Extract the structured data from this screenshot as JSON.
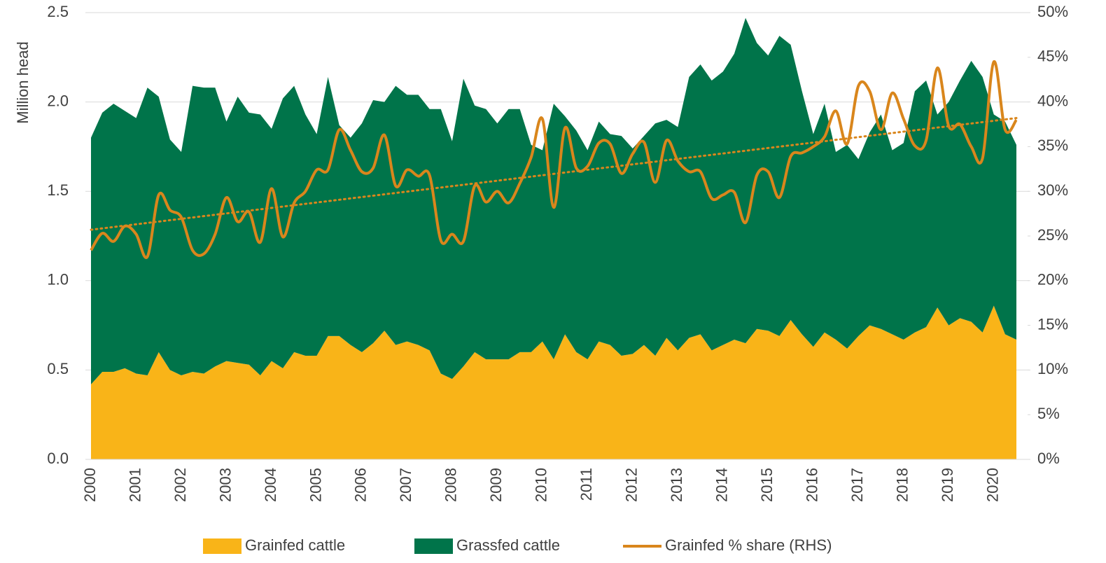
{
  "chart_data": {
    "type": "stacked_area_line",
    "y_axis_label": "Million head",
    "categories": [
      "2000",
      null,
      null,
      null,
      "2001",
      null,
      null,
      null,
      "2002",
      null,
      null,
      null,
      "2003",
      null,
      null,
      null,
      "2004",
      null,
      null,
      null,
      "2005",
      null,
      null,
      null,
      "2006",
      null,
      null,
      null,
      "2007",
      null,
      null,
      null,
      "2008",
      null,
      null,
      null,
      "2009",
      null,
      null,
      null,
      "2010",
      null,
      null,
      null,
      "2011",
      null,
      null,
      null,
      "2012",
      null,
      null,
      null,
      "2013",
      null,
      null,
      null,
      "2014",
      null,
      null,
      null,
      "2015",
      null,
      null,
      null,
      "2016",
      null,
      null,
      null,
      "2017",
      null,
      null,
      null,
      "2018",
      null,
      null,
      null,
      "2019",
      null,
      null,
      null,
      "2020",
      null,
      null
    ],
    "series": [
      {
        "name": "Grainfed cattle",
        "kind": "area",
        "color": "#F9B418",
        "values": [
          0.42,
          0.49,
          0.49,
          0.51,
          0.48,
          0.47,
          0.6,
          0.5,
          0.47,
          0.49,
          0.48,
          0.52,
          0.55,
          0.54,
          0.53,
          0.47,
          0.55,
          0.51,
          0.6,
          0.58,
          0.58,
          0.69,
          0.69,
          0.64,
          0.6,
          0.65,
          0.72,
          0.64,
          0.66,
          0.64,
          0.61,
          0.48,
          0.45,
          0.52,
          0.6,
          0.56,
          0.56,
          0.56,
          0.6,
          0.6,
          0.66,
          0.56,
          0.7,
          0.6,
          0.56,
          0.66,
          0.64,
          0.58,
          0.59,
          0.64,
          0.58,
          0.68,
          0.61,
          0.68,
          0.7,
          0.61,
          0.64,
          0.67,
          0.65,
          0.73,
          0.72,
          0.69,
          0.78,
          0.7,
          0.63,
          0.71,
          0.67,
          0.62,
          0.69,
          0.75,
          0.73,
          0.7,
          0.67,
          0.71,
          0.74,
          0.85,
          0.75,
          0.79,
          0.77,
          0.71,
          0.86,
          0.7,
          0.67
        ]
      },
      {
        "name": "Grassfed cattle",
        "kind": "area",
        "color": "#00744A",
        "values": [
          1.38,
          1.45,
          1.5,
          1.44,
          1.43,
          1.61,
          1.43,
          1.29,
          1.25,
          1.6,
          1.6,
          1.56,
          1.34,
          1.49,
          1.41,
          1.46,
          1.3,
          1.51,
          1.49,
          1.35,
          1.24,
          1.45,
          1.18,
          1.16,
          1.28,
          1.36,
          1.28,
          1.45,
          1.38,
          1.4,
          1.35,
          1.48,
          1.33,
          1.61,
          1.38,
          1.4,
          1.32,
          1.4,
          1.36,
          1.16,
          1.07,
          1.43,
          1.22,
          1.24,
          1.17,
          1.23,
          1.18,
          1.23,
          1.15,
          1.17,
          1.3,
          1.22,
          1.25,
          1.46,
          1.51,
          1.51,
          1.53,
          1.6,
          1.82,
          1.6,
          1.54,
          1.68,
          1.54,
          1.36,
          1.19,
          1.28,
          1.05,
          1.14,
          0.99,
          1.08,
          1.2,
          1.03,
          1.1,
          1.35,
          1.38,
          1.08,
          1.25,
          1.33,
          1.46,
          1.43,
          1.07,
          1.19,
          1.09
        ]
      },
      {
        "name": "Grainfed % share (RHS)",
        "kind": "line",
        "axis": "y2",
        "color": "#D9861C",
        "values": [
          23.4,
          25.3,
          24.4,
          26.1,
          25.2,
          22.7,
          29.6,
          27.9,
          27.1,
          23.4,
          23.0,
          25.2,
          29.3,
          26.6,
          27.7,
          24.3,
          30.3,
          24.9,
          28.7,
          30.0,
          32.4,
          32.4,
          36.9,
          34.6,
          32.2,
          32.6,
          36.3,
          30.6,
          32.4,
          31.7,
          31.8,
          24.5,
          25.2,
          24.4,
          30.6,
          28.8,
          30.0,
          28.7,
          30.9,
          33.8,
          38.1,
          28.2,
          37.1,
          32.6,
          32.8,
          35.4,
          35.3,
          32.0,
          34.2,
          35.5,
          31.0,
          35.7,
          33.4,
          32.2,
          32.2,
          29.2,
          29.6,
          29.9,
          26.5,
          31.8,
          32.2,
          29.3,
          33.9,
          34.3,
          35.0,
          36.1,
          39.0,
          35.3,
          41.8,
          41.2,
          36.9,
          41.0,
          38.1,
          35.1,
          35.7,
          43.8,
          37.3,
          37.5,
          35.0,
          33.7,
          44.5,
          36.9,
          38.0
        ]
      }
    ],
    "trendline": {
      "axis": "y2",
      "color": "#D9861C",
      "style": "dotted",
      "values": [
        25.7,
        38.2
      ]
    },
    "ylim": [
      0,
      2.5
    ],
    "yticks": [
      {
        "value": 0,
        "label": "0.0"
      },
      0.5,
      {
        "value": 1,
        "label": "1.0"
      },
      1.5,
      {
        "value": 2,
        "label": "2.0"
      },
      2.5
    ],
    "y2lim": [
      0,
      50
    ],
    "y2ticks": [
      {
        "value": 0,
        "label": "0%"
      },
      {
        "value": 5,
        "label": "5%"
      },
      {
        "value": 10,
        "label": "10%"
      },
      {
        "value": 15,
        "label": "15%"
      },
      {
        "value": 20,
        "label": "20%"
      },
      {
        "value": 25,
        "label": "25%"
      },
      {
        "value": 30,
        "label": "30%"
      },
      {
        "value": 35,
        "label": "35%"
      },
      {
        "value": 40,
        "label": "40%"
      },
      {
        "value": 45,
        "label": "45%"
      },
      {
        "value": 50,
        "label": "50%"
      }
    ],
    "grid": true,
    "legend": "bottom"
  }
}
